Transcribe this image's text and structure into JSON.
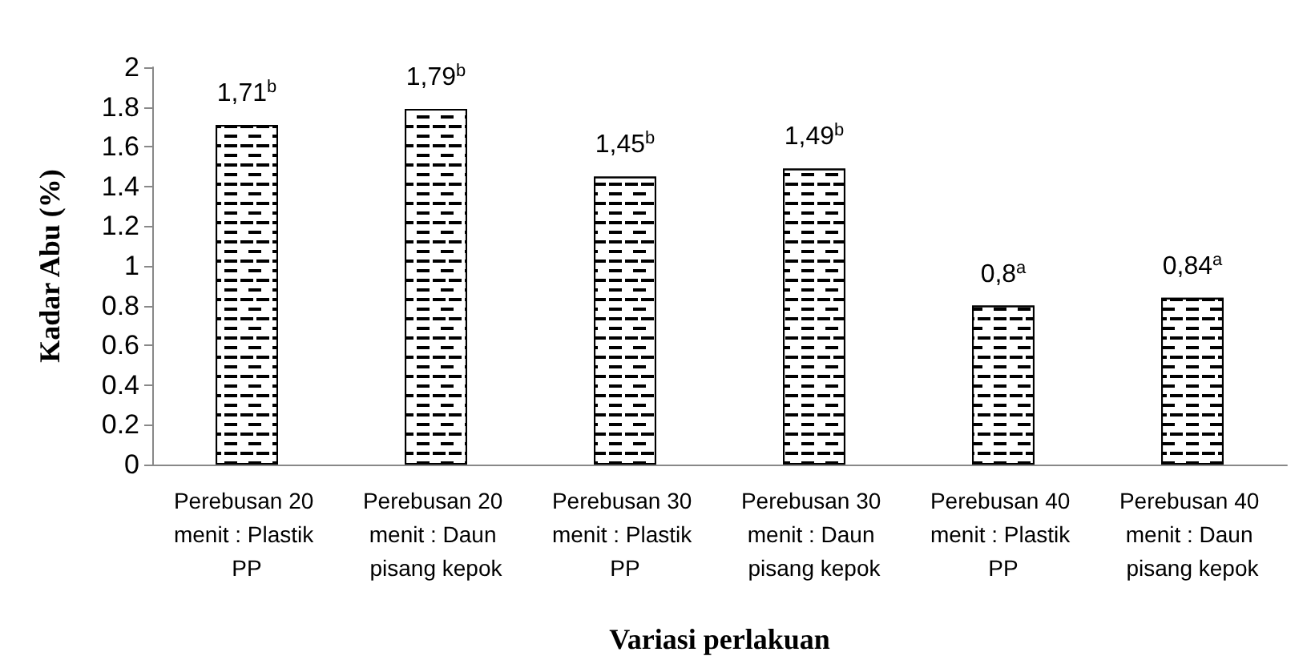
{
  "chart_data": {
    "type": "bar",
    "xlabel": "Variasi perlakuan",
    "ylabel": "Kadar Abu (%)",
    "categories": [
      "Perebusan 20 menit : Plastik PP",
      "Perebusan 20 menit : Daun pisang kepok",
      "Perebusan 30 menit : Plastik PP",
      "Perebusan 30 menit : Daun pisang kepok",
      "Perebusan 40 menit : Plastik PP",
      "Perebusan 40 menit : Daun pisang kepok"
    ],
    "values": [
      1.71,
      1.79,
      1.45,
      1.49,
      0.8,
      0.84
    ],
    "value_labels": [
      "1,71$^{b}$",
      "1,79$^{b}$",
      "1,45$^{b}$",
      "1,49$^{b}$",
      "0,8$^{a}$",
      "0,84$^{a}$"
    ],
    "color": "#ffffff",
    "ylim": [
      0,
      2
    ],
    "yticks": [
      0,
      0.2,
      0.4,
      0.6,
      0.8,
      1,
      1.2,
      1.4,
      1.6,
      1.8,
      2
    ],
    "grid": false
  }
}
